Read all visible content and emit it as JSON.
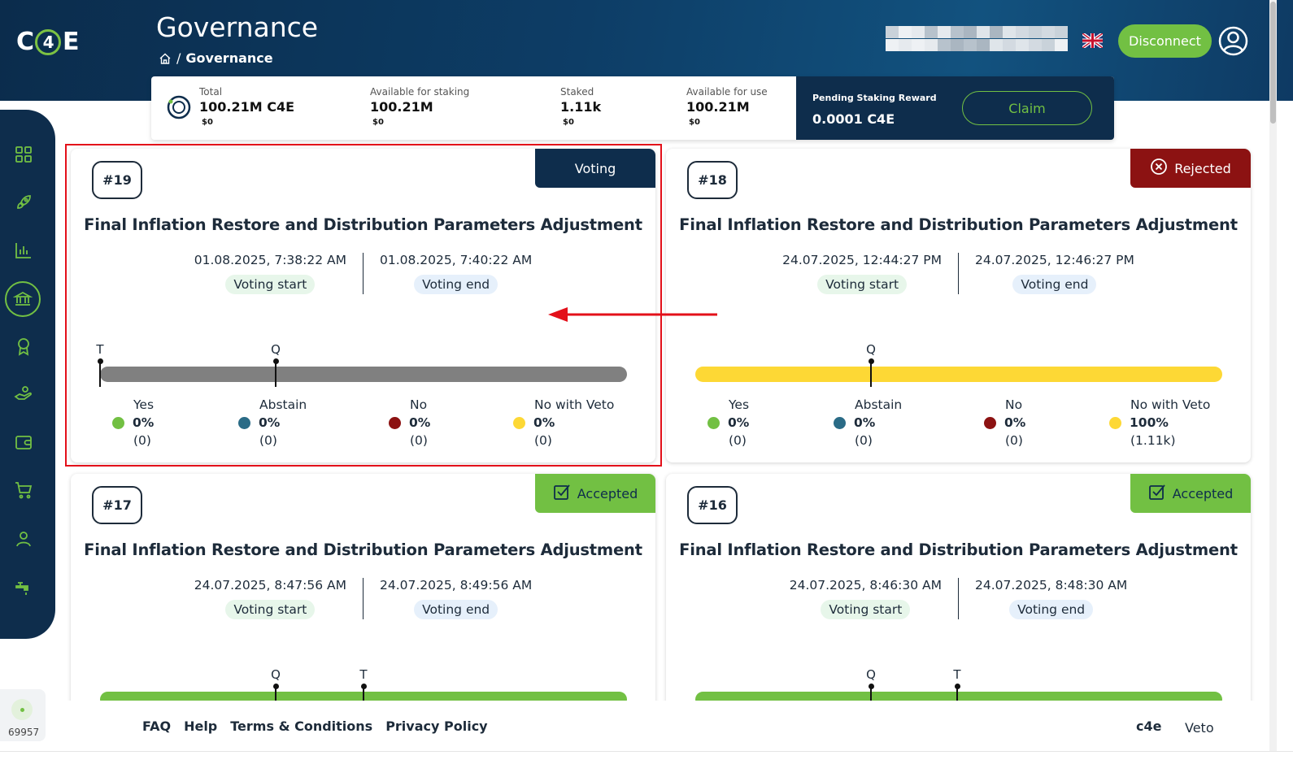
{
  "app": {
    "logo_text_left": "C",
    "logo_text_mid": "4",
    "logo_text_right": "E"
  },
  "header": {
    "title": "Governance",
    "breadcrumb_current": "Governance",
    "breadcrumb_sep": "/"
  },
  "account": {
    "disconnect_label": "Disconnect"
  },
  "balances": {
    "total": {
      "label": "Total",
      "value": "100.21M C4E",
      "usd": "$0"
    },
    "available_staking": {
      "label": "Available for staking",
      "value": "100.21M",
      "usd": "$0"
    },
    "staked": {
      "label": "Staked",
      "value": "1.11k",
      "usd": "$0"
    },
    "available_use": {
      "label": "Available for use",
      "value": "100.21M",
      "usd": "$0"
    },
    "pending": {
      "label": "Pending Staking Reward",
      "value": "0.0001 C4E",
      "claim_label": "Claim"
    }
  },
  "colors": {
    "accent": "#72c043",
    "navy": "#0e2d4c",
    "rejected": "#8c1212",
    "yes": "#72c043",
    "abstain": "#2a6b86",
    "no": "#8c1212",
    "veto": "#fdd835",
    "bar_grey": "#808080"
  },
  "vote_labels": {
    "yes": "Yes",
    "abstain": "Abstain",
    "no": "No",
    "veto": "No with Veto"
  },
  "proposals": [
    {
      "id": "#19",
      "status": "Voting",
      "title": "Final Inflation Restore and Distribution Parameters Adjustment",
      "start": "01.08.2025, 7:38:22 AM",
      "start_label": "Voting start",
      "end": "01.08.2025, 7:40:22 AM",
      "end_label": "Voting end",
      "markers": [
        "T",
        "Q"
      ],
      "yes": {
        "pct": "0%",
        "count": "(0)"
      },
      "abstain": {
        "pct": "0%",
        "count": "(0)"
      },
      "no": {
        "pct": "0%",
        "count": "(0)"
      },
      "veto": {
        "pct": "0%",
        "count": "(0)"
      }
    },
    {
      "id": "#18",
      "status": "Rejected",
      "title": "Final Inflation Restore and Distribution Parameters Adjustment",
      "start": "24.07.2025, 12:44:27 PM",
      "start_label": "Voting start",
      "end": "24.07.2025, 12:46:27 PM",
      "end_label": "Voting end",
      "markers": [
        "Q"
      ],
      "yes": {
        "pct": "0%",
        "count": "(0)"
      },
      "abstain": {
        "pct": "0%",
        "count": "(0)"
      },
      "no": {
        "pct": "0%",
        "count": "(0)"
      },
      "veto": {
        "pct": "100%",
        "count": "(1.11k)"
      }
    },
    {
      "id": "#17",
      "status": "Accepted",
      "title": "Final Inflation Restore and Distribution Parameters Adjustment",
      "start": "24.07.2025, 8:47:56 AM",
      "start_label": "Voting start",
      "end": "24.07.2025, 8:49:56 AM",
      "end_label": "Voting end",
      "markers": [
        "Q",
        "T"
      ]
    },
    {
      "id": "#16",
      "status": "Accepted",
      "title": "Final Inflation Restore and Distribution Parameters Adjustment",
      "start": "24.07.2025, 8:46:30 AM",
      "start_label": "Voting start",
      "end": "24.07.2025, 8:48:30 AM",
      "end_label": "Voting end",
      "markers": [
        "Q",
        "T"
      ]
    }
  ],
  "sidebar": {
    "items": [
      "dashboard-icon",
      "rocket-icon",
      "chart-icon",
      "governance-icon",
      "award-icon",
      "staking-hand-icon",
      "wallet-icon",
      "cart-icon",
      "user-icon",
      "faucet-icon"
    ],
    "active": "governance-icon"
  },
  "footer": {
    "links": [
      "FAQ",
      "Help",
      "Terms & Conditions",
      "Privacy Policy"
    ],
    "brand": "c4e",
    "veto": "Veto"
  },
  "block": {
    "height": "69957"
  }
}
